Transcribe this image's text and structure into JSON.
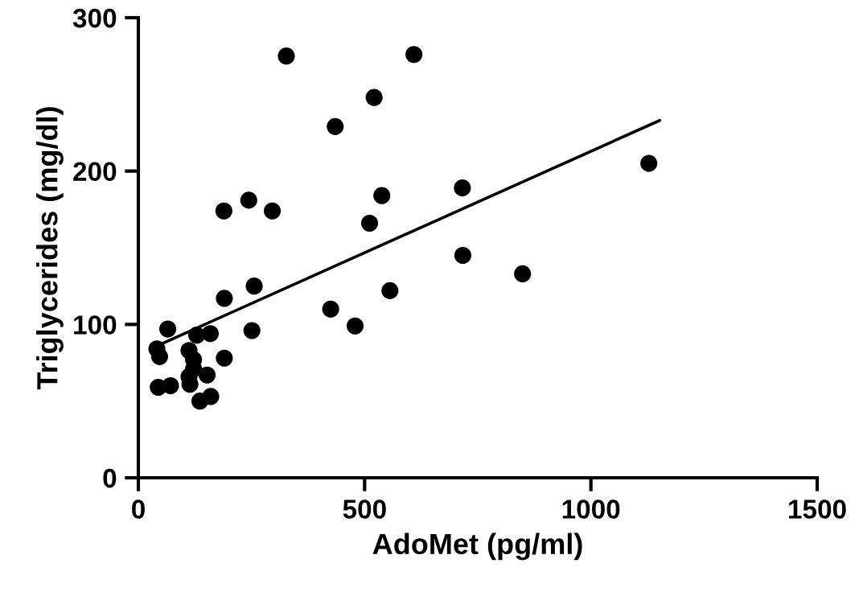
{
  "chart_data": {
    "type": "scatter",
    "xlabel": "AdoMet (pg/ml)",
    "ylabel": "Triglycerides (mg/dl)",
    "xlim": [
      0,
      1500
    ],
    "ylim": [
      0,
      300
    ],
    "xticks": [
      0,
      500,
      1000,
      1500
    ],
    "yticks": [
      0,
      100,
      200,
      300
    ],
    "grid": false,
    "legend": false,
    "marker": "circle",
    "series": [
      {
        "color": "#000000",
        "x": [
          327,
          609,
          521,
          435,
          189,
          244,
          296,
          716,
          538,
          511,
          717,
          849,
          256,
          190,
          556,
          425,
          479,
          65,
          251,
          129,
          159,
          41,
          47,
          112,
          122,
          190,
          122,
          152,
          112,
          44,
          71,
          114,
          136,
          160,
          1128
        ],
        "values": [
          275,
          276,
          248,
          229,
          174,
          181,
          174,
          189,
          184,
          166,
          145,
          133,
          125,
          117,
          122,
          110,
          99,
          97,
          96,
          93,
          94,
          84,
          79,
          83,
          77,
          78,
          71,
          67,
          66,
          59,
          60,
          61,
          50,
          53,
          205
        ]
      },
      {
        "type": "line",
        "color": "#000000",
        "line_style": "solid",
        "marker": "none",
        "x": [
          41,
          1152
        ],
        "values": [
          86,
          233
        ]
      }
    ]
  }
}
